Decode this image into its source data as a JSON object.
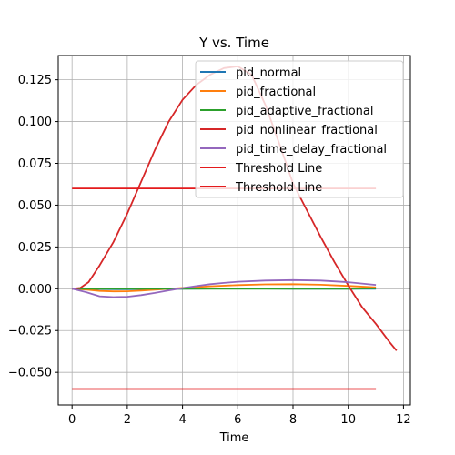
{
  "chart_data": {
    "type": "line",
    "title": "Y vs. Time",
    "xlabel": "Time",
    "ylabel": "",
    "xlim": [
      -0.5,
      12.25
    ],
    "ylim": [
      -0.0695,
      0.1395
    ],
    "xticks": [
      0,
      2,
      4,
      6,
      8,
      10,
      12
    ],
    "yticks": [
      -0.05,
      -0.025,
      0.0,
      0.025,
      0.05,
      0.075,
      0.1,
      0.125
    ],
    "xtick_labels": [
      "0",
      "2",
      "4",
      "6",
      "8",
      "10",
      "12"
    ],
    "ytick_labels": [
      "−0.050",
      "−0.025",
      "0.000",
      "0.025",
      "0.050",
      "0.075",
      "0.100",
      "0.125"
    ],
    "grid": true,
    "legend_position": "top-right",
    "series": [
      {
        "name": "pid_normal",
        "color": "#1f77b4",
        "x": [
          0,
          1,
          2,
          3,
          4,
          5,
          6,
          7,
          8,
          9,
          10,
          11
        ],
        "y": [
          0,
          -0.0002,
          -0.0003,
          -0.0002,
          0,
          0.0001,
          0.0001,
          0.0001,
          0,
          0,
          0,
          0
        ]
      },
      {
        "name": "pid_fractional",
        "color": "#ff7f0e",
        "x": [
          0,
          0.5,
          1,
          1.5,
          2,
          2.5,
          3,
          4,
          5,
          6,
          7,
          8,
          9,
          10,
          11
        ],
        "y": [
          0,
          -0.0005,
          -0.0013,
          -0.0016,
          -0.0015,
          -0.0011,
          -0.0006,
          0.0005,
          0.0015,
          0.0022,
          0.0026,
          0.0027,
          0.0024,
          0.0017,
          0.0008
        ]
      },
      {
        "name": "pid_adaptive_fractional",
        "color": "#2ca02c",
        "x": [
          0,
          1,
          2,
          3,
          4,
          5,
          6,
          7,
          8,
          9,
          10,
          11
        ],
        "y": [
          0,
          0,
          0,
          0,
          0,
          0,
          0,
          0,
          0,
          0,
          0,
          0.0002
        ]
      },
      {
        "name": "pid_nonlinear_fractional",
        "color": "#d62728",
        "x": [
          0,
          0.3,
          0.6,
          1,
          1.5,
          2,
          2.5,
          3,
          3.5,
          4,
          4.5,
          5,
          5.5,
          6,
          6.5,
          7,
          7.5,
          8,
          8.5,
          9,
          9.5,
          10,
          10.5,
          11,
          11.5,
          11.75
        ],
        "y": [
          0,
          0.0005,
          0.004,
          0.014,
          0.028,
          0.045,
          0.064,
          0.083,
          0.1,
          0.113,
          0.122,
          0.128,
          0.132,
          0.133,
          0.128,
          0.11,
          0.087,
          0.063,
          0.047,
          0.031,
          0.016,
          0.002,
          -0.011,
          -0.021,
          -0.032,
          -0.037
        ]
      },
      {
        "name": "pid_time_delay_fractional",
        "color": "#9467bd",
        "x": [
          0,
          0.5,
          1,
          1.5,
          2,
          2.5,
          3,
          3.5,
          4,
          4.5,
          5,
          5.5,
          6,
          7,
          8,
          9,
          10,
          11
        ],
        "y": [
          0,
          -0.002,
          -0.0045,
          -0.005,
          -0.0048,
          -0.0038,
          -0.0025,
          -0.001,
          0.0004,
          0.0016,
          0.0027,
          0.0035,
          0.0042,
          0.0049,
          0.0052,
          0.0049,
          0.0039,
          0.0023
        ]
      },
      {
        "name": "Threshold Line",
        "color": "#e41a1c",
        "x": [
          0,
          11
        ],
        "y": [
          0.06,
          0.06
        ]
      },
      {
        "name": "Threshold Line",
        "color": "#e41a1c",
        "x": [
          0,
          11
        ],
        "y": [
          -0.06,
          -0.06
        ]
      }
    ]
  }
}
